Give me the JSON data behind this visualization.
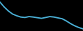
{
  "values": [
    10500,
    9400,
    8500,
    7800,
    7400,
    7100,
    7000,
    7200,
    7100,
    6950,
    6800,
    7000,
    7200,
    7100,
    6900,
    6700,
    6200,
    5600,
    5100,
    4700,
    4400
  ],
  "line_color": "#4aafd5",
  "linewidth": 1.4,
  "background_color": "#000000",
  "ylim_padding": 0.08
}
